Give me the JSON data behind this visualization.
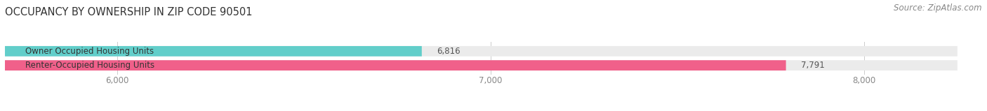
{
  "title": "OCCUPANCY BY OWNERSHIP IN ZIP CODE 90501",
  "source": "Source: ZipAtlas.com",
  "categories": [
    "Owner Occupied Housing Units",
    "Renter-Occupied Housing Units"
  ],
  "values": [
    6816,
    7791
  ],
  "bar_colors": [
    "#62ceca",
    "#f0608a"
  ],
  "bar_background": "#ebebeb",
  "xlim_min": 5700,
  "xlim_max": 8250,
  "xticks": [
    6000,
    7000,
    8000
  ],
  "bar_height": 0.32,
  "title_fontsize": 10.5,
  "source_fontsize": 8.5,
  "label_fontsize": 8.5,
  "value_fontsize": 8.5,
  "tick_fontsize": 8.5
}
